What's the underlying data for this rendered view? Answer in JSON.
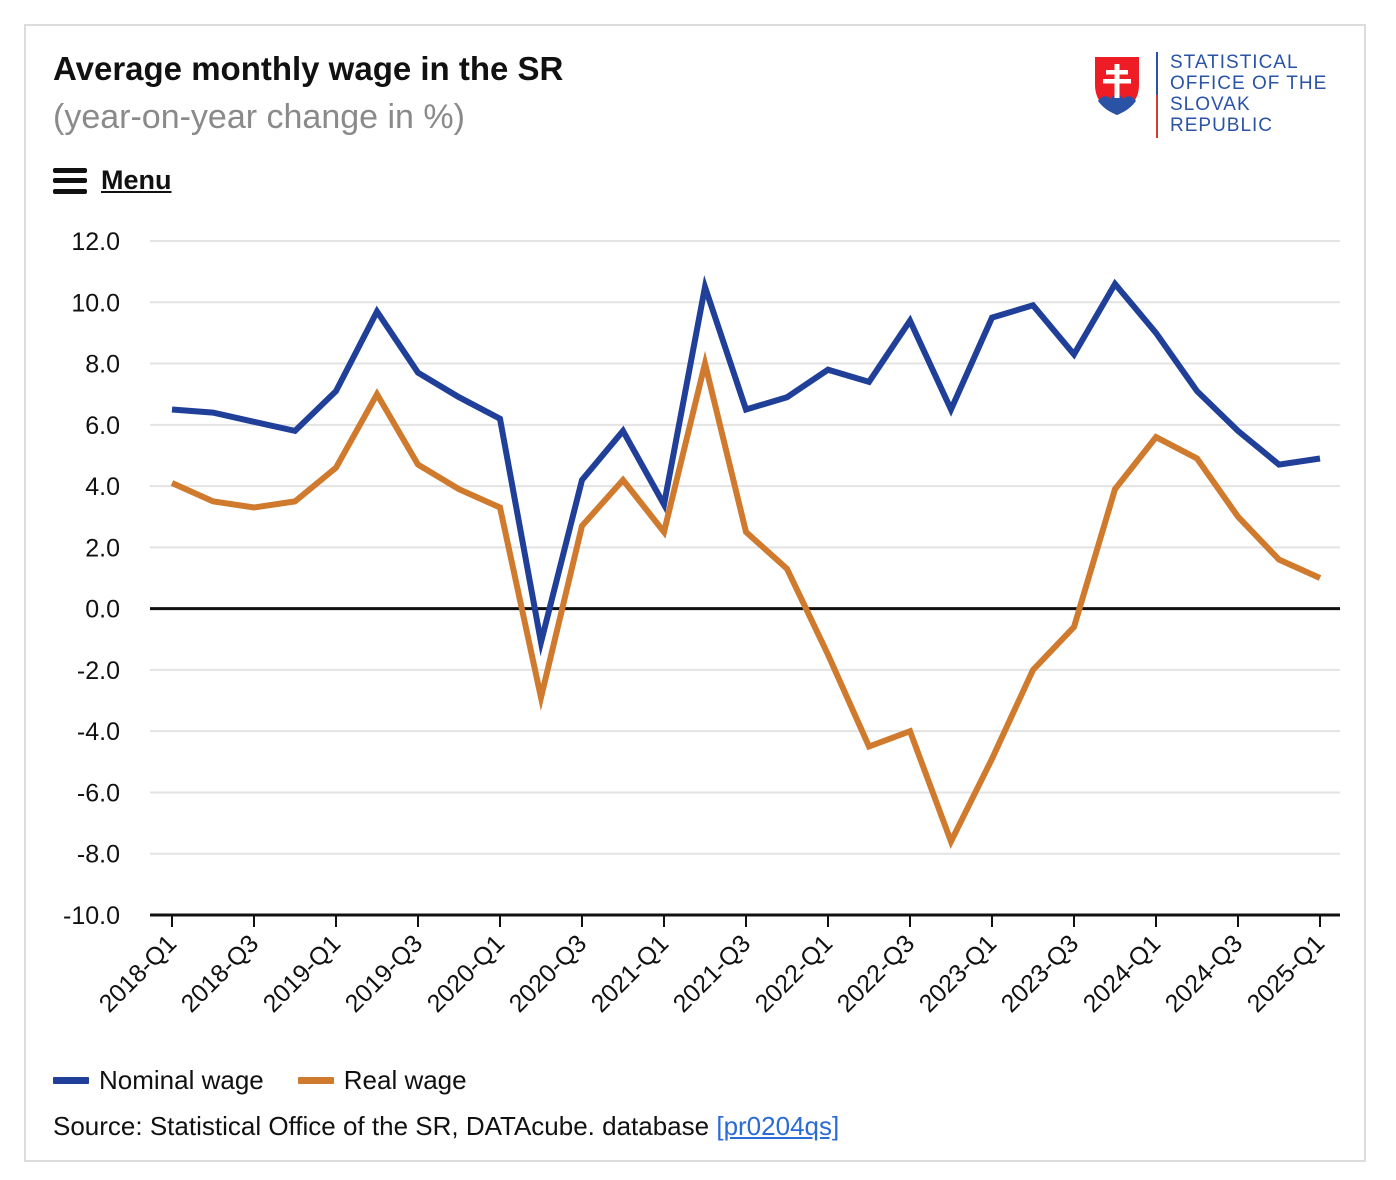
{
  "header": {
    "title": "Average monthly wage in the SR",
    "subtitle": "(year-on-year change in %)"
  },
  "menu": {
    "label": "Menu",
    "icon": "hamburger-menu-icon"
  },
  "logo": {
    "icon": "slovak-coat-of-arms-shield",
    "text": "STATISTICAL OFFICE OF THE SLOVAK REPUBLIC",
    "text_color": "#2a53a6",
    "rule_colors": [
      "#2a53a6",
      "#d63a2f"
    ]
  },
  "chart_data": {
    "type": "line",
    "title": "Average monthly wage in the SR",
    "subtitle": "(year-on-year change in %)",
    "ylim": [
      -10,
      12
    ],
    "yticks": [
      "12.0",
      "10.0",
      "8.0",
      "6.0",
      "4.0",
      "2.0",
      "0.0",
      "-2.0",
      "-4.0",
      "-6.0",
      "-8.0",
      "-10.0"
    ],
    "xticks": [
      "2018-Q1",
      "2018-Q3",
      "2019-Q1",
      "2019-Q3",
      "2020-Q1",
      "2020-Q3",
      "2021-Q1",
      "2021-Q3",
      "2022-Q1",
      "2022-Q3",
      "2023-Q1",
      "2023-Q3",
      "2024-Q1",
      "2024-Q3",
      "2025-Q1"
    ],
    "x": [
      "2018-Q1",
      "2018-Q2",
      "2018-Q3",
      "2018-Q4",
      "2019-Q1",
      "2019-Q2",
      "2019-Q3",
      "2019-Q4",
      "2020-Q1",
      "2020-Q2",
      "2020-Q3",
      "2020-Q4",
      "2021-Q1",
      "2021-Q2",
      "2021-Q3",
      "2021-Q4",
      "2022-Q1",
      "2022-Q2",
      "2022-Q3",
      "2022-Q4",
      "2023-Q1",
      "2023-Q2",
      "2023-Q3",
      "2023-Q4",
      "2024-Q1",
      "2024-Q2",
      "2024-Q3",
      "2024-Q4",
      "2025-Q1"
    ],
    "series": [
      {
        "name": "Nominal wage",
        "color": "#1f3f99",
        "values": [
          6.5,
          6.4,
          6.1,
          5.8,
          7.1,
          9.7,
          7.7,
          6.9,
          6.2,
          -1.1,
          4.2,
          5.8,
          3.4,
          10.5,
          6.5,
          6.9,
          7.8,
          7.4,
          9.4,
          6.5,
          9.5,
          9.9,
          8.3,
          10.6,
          9.0,
          7.1,
          5.8,
          4.7,
          4.9
        ]
      },
      {
        "name": "Real wage",
        "color": "#d07a2e",
        "values": [
          4.1,
          3.5,
          3.3,
          3.5,
          4.6,
          7.0,
          4.7,
          3.9,
          3.3,
          -2.9,
          2.7,
          4.2,
          2.5,
          8.0,
          2.5,
          1.3,
          -1.5,
          -4.5,
          -4.0,
          -7.6,
          -4.9,
          -2.0,
          -0.6,
          3.9,
          5.6,
          4.9,
          3.0,
          1.6,
          1.0
        ]
      }
    ],
    "grid": true,
    "legend": "bottom-left"
  },
  "source": {
    "text": "Source: Statistical Office of the SR, DATAcube. database",
    "link_text": "[pr0204qs]",
    "link_color": "#2a6bd4"
  }
}
